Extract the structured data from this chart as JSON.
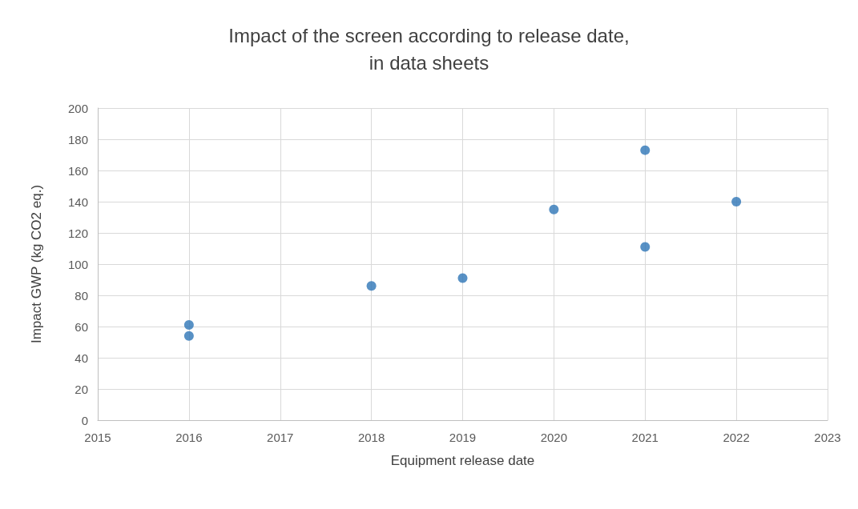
{
  "chart_data": {
    "type": "scatter",
    "title": "Impact of the screen according to release date,\nin data sheets",
    "xlabel": "Equipment release date",
    "ylabel": "Impact GWP (kg CO2 eq.)",
    "x": [
      2016,
      2016,
      2018,
      2019,
      2020,
      2021,
      2021,
      2022
    ],
    "values": [
      61,
      54,
      86,
      91,
      135,
      173,
      111,
      140
    ],
    "color": "#2e75b6",
    "marker": "circle",
    "xlim": [
      2015,
      2023
    ],
    "xticks": [
      2015,
      2016,
      2017,
      2018,
      2019,
      2020,
      2021,
      2022,
      2023
    ],
    "ylim": [
      0,
      200
    ],
    "yticks": [
      0,
      20,
      40,
      60,
      80,
      100,
      120,
      140,
      160,
      180,
      200
    ],
    "grid": true
  }
}
